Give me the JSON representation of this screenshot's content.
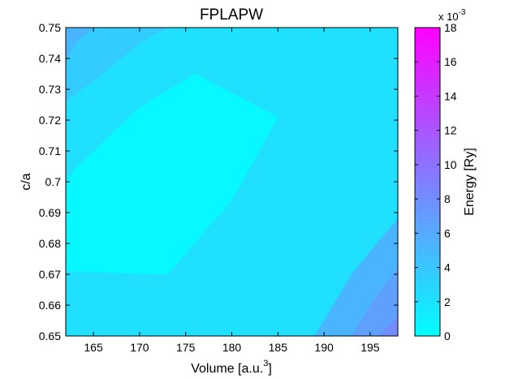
{
  "chart_data": {
    "type": "filled-contour",
    "title": "FPLAPW",
    "xlabel": "Volume [a.u.",
    "xlabel_superscript": "3",
    "xlabel_close": "]",
    "ylabel": "c/a",
    "colorbar": {
      "label": "Energy [Ry]",
      "exponent_prefix": "x 10",
      "exponent_power": "-3",
      "range": [
        0,
        18
      ],
      "ticks": [
        "0",
        "2",
        "4",
        "6",
        "8",
        "10",
        "12",
        "14",
        "16",
        "18"
      ],
      "colormap": "cool",
      "color_min": "#00ffff",
      "color_max": "#ff00ff"
    },
    "xlim": [
      162,
      198
    ],
    "ylim": [
      0.65,
      0.75
    ],
    "x_ticks": [
      "165",
      "170",
      "175",
      "180",
      "185",
      "190",
      "195"
    ],
    "y_ticks": [
      "0.65",
      "0.66",
      "0.67",
      "0.68",
      "0.69",
      "0.7",
      "0.71",
      "0.72",
      "0.73",
      "0.74",
      "0.75"
    ],
    "levels": [
      0,
      1.5,
      3,
      4.5,
      6,
      7.5,
      9,
      10.5,
      12,
      13.5,
      15,
      16.5
    ],
    "regions": [
      {
        "level": 0.5,
        "polygon": [
          [
            162,
            0.671
          ],
          [
            173,
            0.67
          ],
          [
            180,
            0.694
          ],
          [
            185,
            0.721
          ],
          [
            176,
            0.735
          ],
          [
            170,
            0.724
          ],
          [
            163,
            0.704
          ],
          [
            162,
            0.7
          ]
        ]
      },
      {
        "level": 2.2,
        "polygon": [
          [
            162,
            0.65
          ],
          [
            198,
            0.65
          ],
          [
            198,
            0.75
          ],
          [
            162,
            0.75
          ]
        ]
      },
      {
        "level": 3.7,
        "polygon": [
          [
            162,
            0.726
          ],
          [
            166,
            0.735
          ],
          [
            170,
            0.745
          ],
          [
            173,
            0.75
          ],
          [
            162,
            0.75
          ]
        ]
      },
      {
        "level": 5.2,
        "polygon": [
          [
            162,
            0.739
          ],
          [
            163,
            0.745
          ],
          [
            165,
            0.75
          ],
          [
            162,
            0.75
          ]
        ]
      },
      {
        "level": 5.2,
        "polygon": [
          [
            189,
            0.65
          ],
          [
            191,
            0.66
          ],
          [
            193,
            0.67
          ],
          [
            196,
            0.681
          ],
          [
            198,
            0.688
          ],
          [
            198,
            0.65
          ]
        ]
      },
      {
        "level": 6.7,
        "polygon": [
          [
            193,
            0.65
          ],
          [
            195,
            0.66
          ],
          [
            198,
            0.672
          ],
          [
            198,
            0.65
          ]
        ]
      },
      {
        "level": 8.2,
        "polygon": [
          [
            196,
            0.65
          ],
          [
            198,
            0.656
          ],
          [
            198,
            0.65
          ]
        ]
      }
    ]
  }
}
